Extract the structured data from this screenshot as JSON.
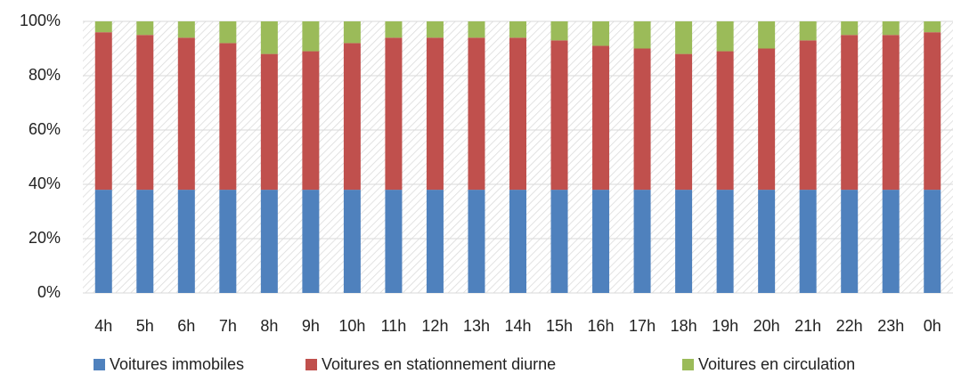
{
  "chart_data": {
    "type": "stacked_bar",
    "categories": [
      "4h",
      "5h",
      "6h",
      "7h",
      "8h",
      "9h",
      "10h",
      "11h",
      "12h",
      "13h",
      "14h",
      "15h",
      "16h",
      "17h",
      "18h",
      "19h",
      "20h",
      "21h",
      "22h",
      "23h",
      "0h"
    ],
    "series": [
      {
        "name": "Voitures immobiles",
        "color": "#4f81bd",
        "values": [
          38,
          38,
          38,
          38,
          38,
          38,
          38,
          38,
          38,
          38,
          38,
          38,
          38,
          38,
          38,
          38,
          38,
          38,
          38,
          38,
          38
        ]
      },
      {
        "name": "Voitures en stationnement diurne",
        "color": "#c0504d",
        "values": [
          58,
          57,
          56,
          54,
          50,
          51,
          54,
          56,
          56,
          56,
          56,
          55,
          53,
          52,
          50,
          51,
          52,
          55,
          57,
          57,
          58
        ]
      },
      {
        "name": "Voitures en circulation",
        "color": "#9bbb59",
        "values": [
          4,
          5,
          6,
          8,
          12,
          11,
          8,
          6,
          6,
          6,
          6,
          7,
          9,
          10,
          12,
          11,
          10,
          7,
          5,
          5,
          4
        ]
      }
    ],
    "ylim": [
      0,
      100
    ],
    "yticks": [
      {
        "value": 0,
        "label": "0%"
      },
      {
        "value": 20,
        "label": "20%"
      },
      {
        "value": 40,
        "label": "40%"
      },
      {
        "value": 60,
        "label": "60%"
      },
      {
        "value": 80,
        "label": "80%"
      },
      {
        "value": 100,
        "label": "100%"
      }
    ],
    "grid": true,
    "legend": "bottom"
  }
}
